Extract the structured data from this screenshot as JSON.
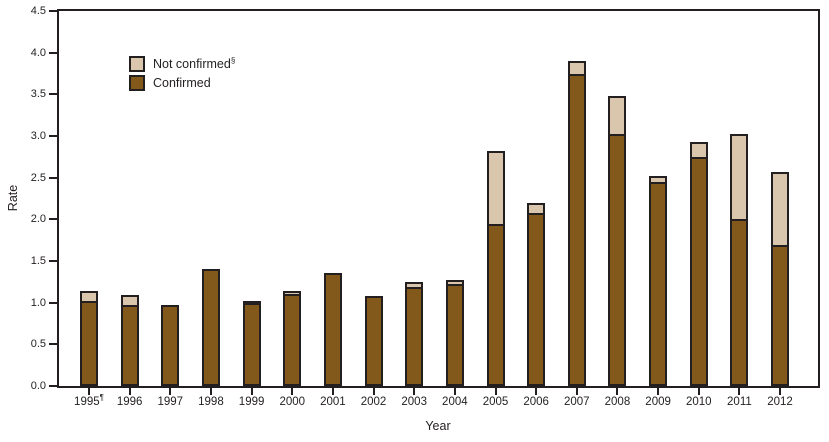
{
  "colors": {
    "confirmed": "#82591a",
    "not_confirmed": "#d9c6ac",
    "frame": "#231f20",
    "background": "#ffffff"
  },
  "axes": {
    "y_title": "Rate",
    "x_title": "Year",
    "y_tick_labels": [
      "0.0",
      "0.5",
      "1.0",
      "1.5",
      "2.0",
      "2.5",
      "3.0",
      "3.5",
      "4.0",
      "4.5"
    ]
  },
  "legend": {
    "items": [
      {
        "label": "Not confirmed",
        "sup": "§",
        "series": "not_confirmed"
      },
      {
        "label": "Confirmed",
        "sup": "",
        "series": "confirmed"
      }
    ]
  },
  "chart_data": {
    "type": "bar",
    "stacked": true,
    "title": "",
    "xlabel": "Year",
    "ylabel": "Rate",
    "ylim": [
      0,
      4.5
    ],
    "ytick_step": 0.5,
    "grid": false,
    "legend_position": "inside-top-left",
    "categories": [
      "1995",
      "1996",
      "1997",
      "1998",
      "1999",
      "2000",
      "2001",
      "2002",
      "2003",
      "2004",
      "2005",
      "2006",
      "2007",
      "2008",
      "2009",
      "2010",
      "2011",
      "2012"
    ],
    "category_superscripts": [
      "¶",
      "",
      "",
      "",
      "",
      "",
      "",
      "",
      "",
      "",
      "",
      "",
      "",
      "",
      "",
      "",
      "",
      ""
    ],
    "series": [
      {
        "name": "Confirmed",
        "values": [
          1.0,
          0.95,
          0.95,
          1.38,
          0.97,
          1.08,
          1.33,
          1.05,
          1.17,
          1.2,
          1.92,
          2.05,
          3.72,
          3.0,
          2.42,
          2.72,
          1.98,
          1.67
        ]
      },
      {
        "name": "Not confirmed",
        "values": [
          0.12,
          0.12,
          0.0,
          0.0,
          0.03,
          0.04,
          0.0,
          0.0,
          0.05,
          0.05,
          0.88,
          0.12,
          0.16,
          0.45,
          0.08,
          0.18,
          1.02,
          0.88
        ]
      }
    ]
  }
}
